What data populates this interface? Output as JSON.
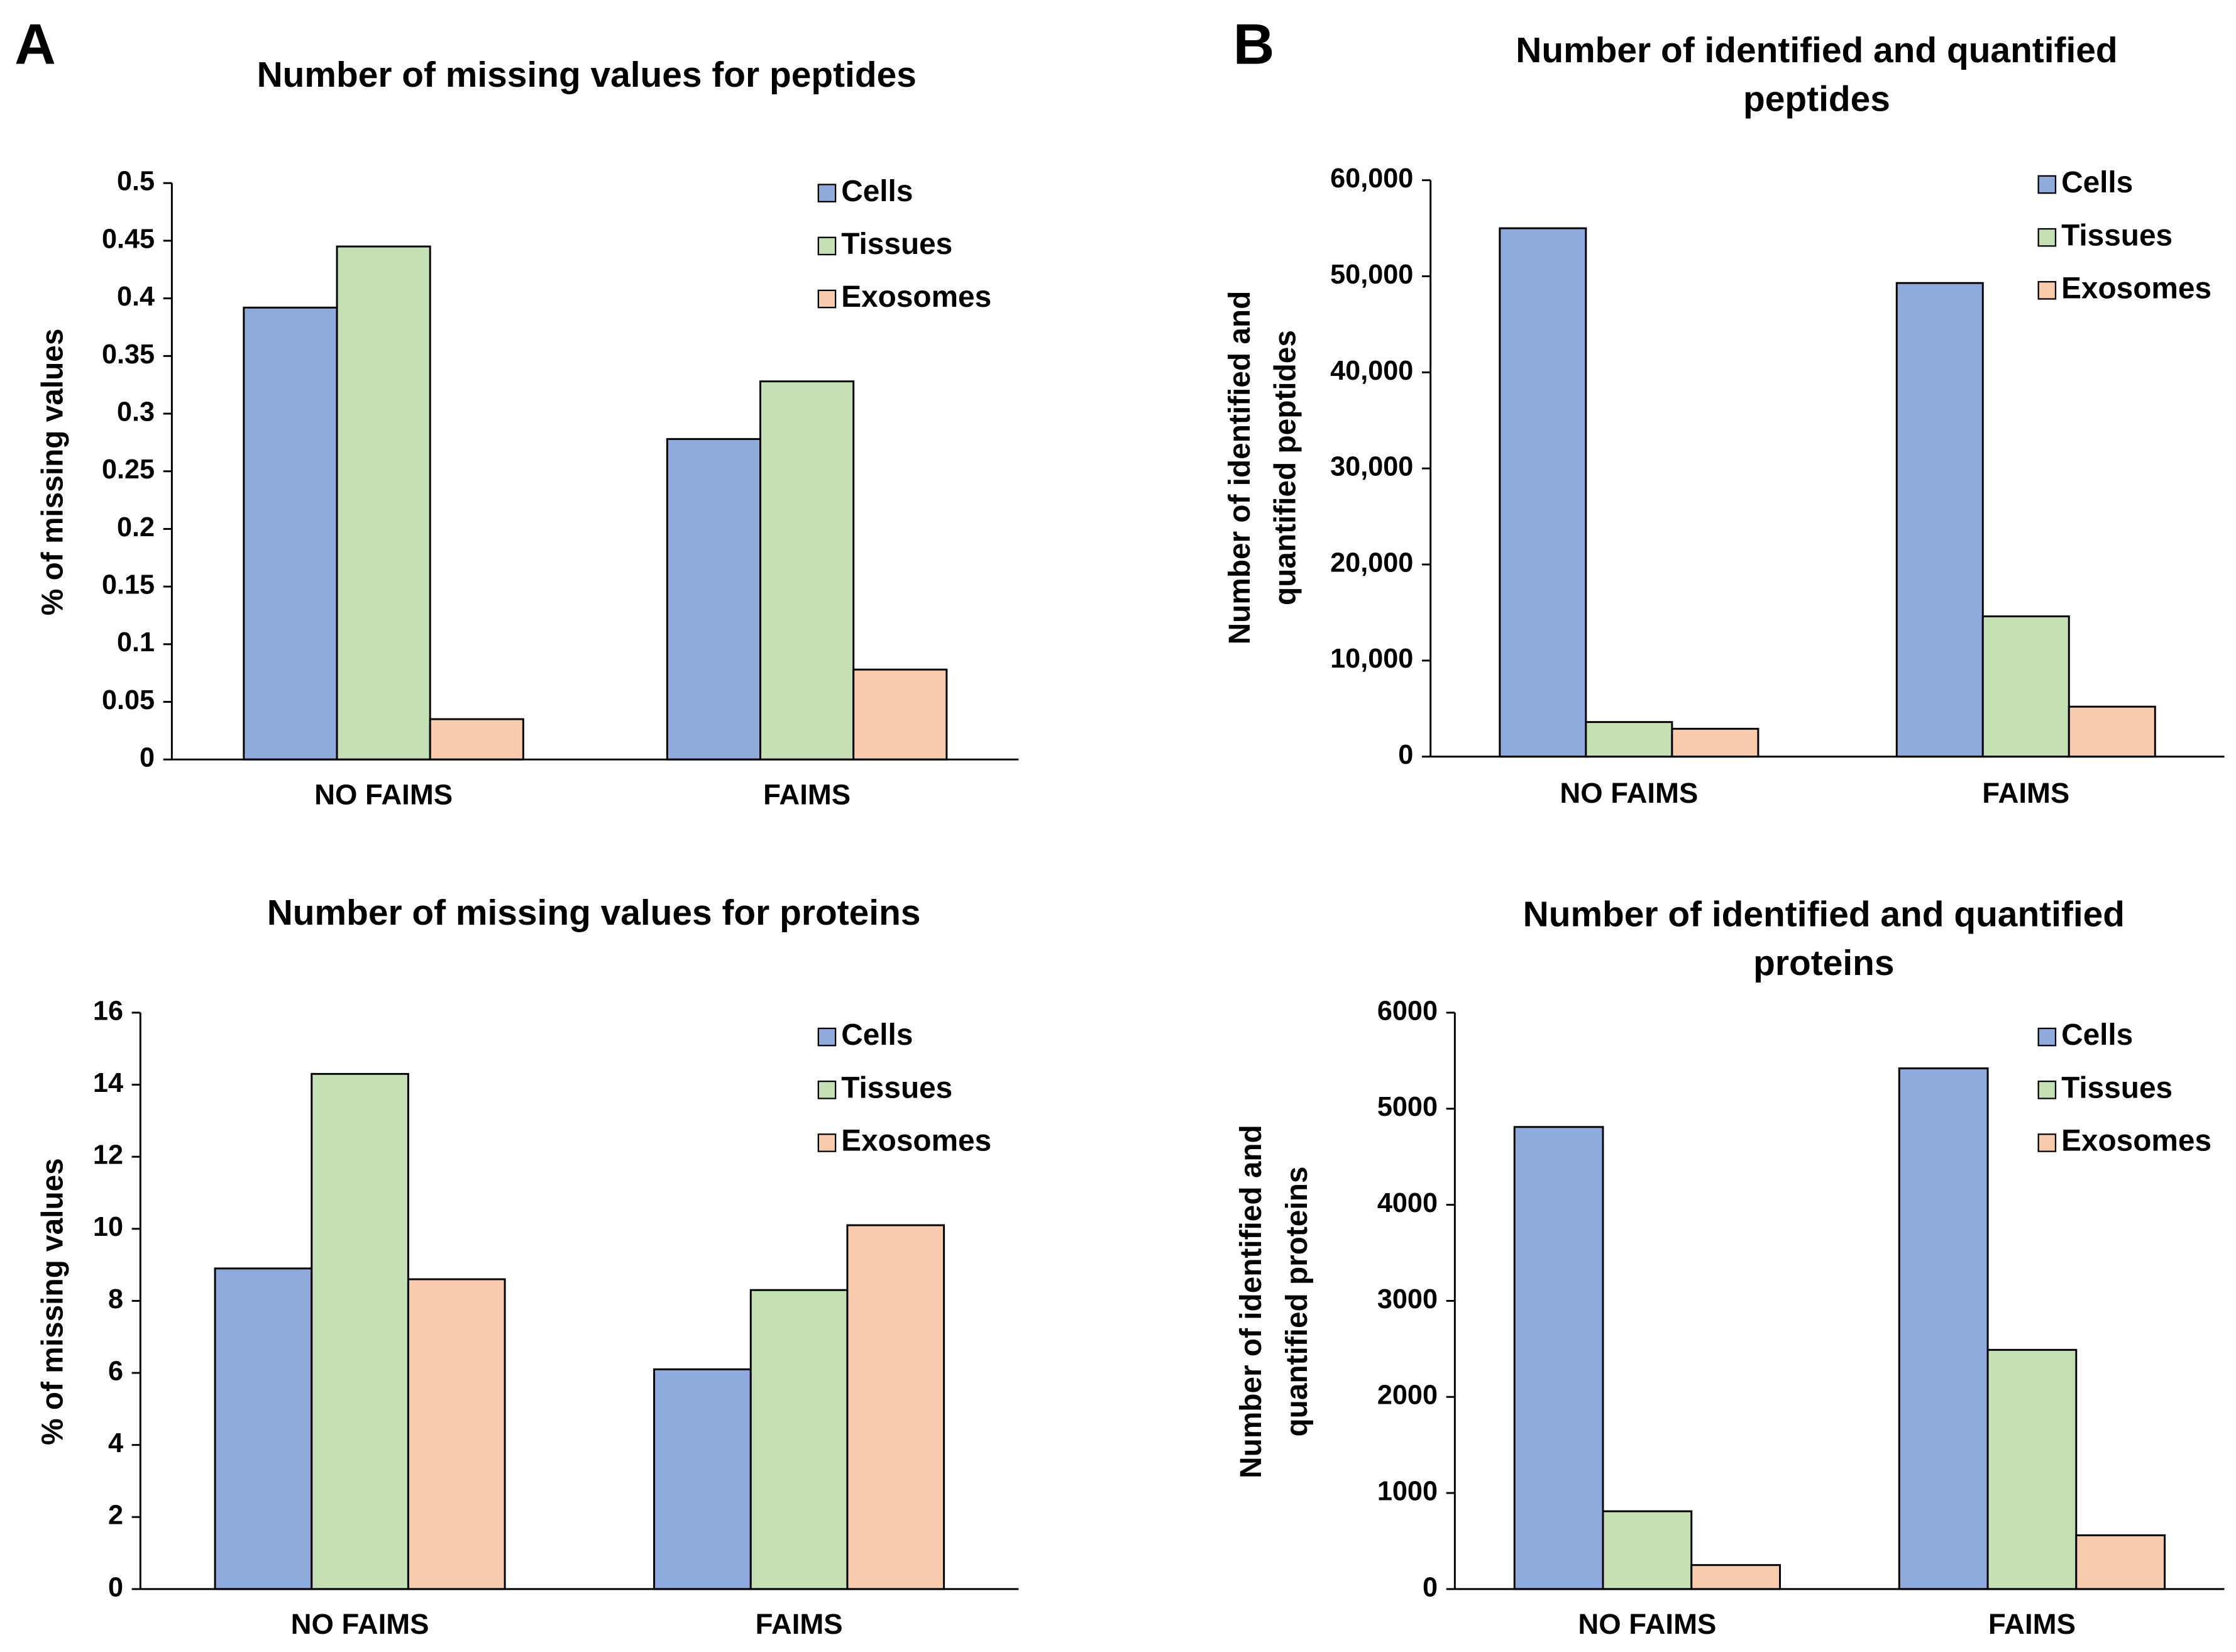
{
  "chart_data": [
    {
      "type": "bar",
      "panel": "A",
      "title": [
        "Number of missing values for peptides"
      ],
      "y_label": [
        "% of missing values"
      ],
      "categories": [
        "NO FAIMS",
        "FAIMS"
      ],
      "series": [
        {
          "name": "Cells",
          "color": "#8faadc",
          "values": [
            0.392,
            0.278
          ]
        },
        {
          "name": "Tissues",
          "color": "#c5e0b4",
          "values": [
            0.445,
            0.328
          ]
        },
        {
          "name": "Exosomes",
          "color": "#f8cbad",
          "values": [
            0.035,
            0.078
          ]
        }
      ],
      "ylim": [
        0,
        0.5
      ],
      "yticks": [
        0,
        0.05,
        0.1,
        0.15,
        0.2,
        0.25,
        0.3,
        0.35,
        0.4,
        0.45,
        0.5
      ],
      "grid": false,
      "legend": "upper right"
    },
    {
      "type": "bar",
      "panel": "B",
      "title": [
        "Number of identified and quantified",
        "peptides"
      ],
      "y_label": [
        "Number of identified and",
        "quantified peptides"
      ],
      "categories": [
        "NO FAIMS",
        "FAIMS"
      ],
      "series": [
        {
          "name": "Cells",
          "color": "#8faadc",
          "values": [
            55000,
            49300
          ]
        },
        {
          "name": "Tissues",
          "color": "#c5e0b4",
          "values": [
            3600,
            14600
          ]
        },
        {
          "name": "Exosomes",
          "color": "#f8cbad",
          "values": [
            2900,
            5200
          ]
        }
      ],
      "ylim": [
        0,
        60000
      ],
      "yticks": [
        0,
        {
          "value": 10000,
          "label": "10,000"
        },
        {
          "value": 20000,
          "label": "20,000"
        },
        {
          "value": 30000,
          "label": "30,000"
        },
        {
          "value": 40000,
          "label": "40,000"
        },
        {
          "value": 50000,
          "label": "50,000"
        },
        {
          "value": 60000,
          "label": "60,000"
        }
      ],
      "grid": false,
      "legend": "upper right"
    },
    {
      "type": "bar",
      "title": [
        "Number of missing values for proteins"
      ],
      "y_label": [
        "% of missing values"
      ],
      "categories": [
        "NO FAIMS",
        "FAIMS"
      ],
      "series": [
        {
          "name": "Cells",
          "color": "#8faadc",
          "values": [
            8.9,
            6.1
          ]
        },
        {
          "name": "Tissues",
          "color": "#c5e0b4",
          "values": [
            14.3,
            8.3
          ]
        },
        {
          "name": "Exosomes",
          "color": "#f8cbad",
          "values": [
            8.6,
            10.1
          ]
        }
      ],
      "ylim": [
        0,
        16
      ],
      "yticks": [
        0,
        2,
        4,
        6,
        8,
        10,
        12,
        14,
        16
      ],
      "grid": false,
      "legend": "upper right"
    },
    {
      "type": "bar",
      "title": [
        "Number of identified and quantified",
        "proteins"
      ],
      "y_label": [
        "Number of identified and",
        "quantified proteins"
      ],
      "categories": [
        "NO FAIMS",
        "FAIMS"
      ],
      "series": [
        {
          "name": "Cells",
          "color": "#8faadc",
          "values": [
            4810,
            5420
          ]
        },
        {
          "name": "Tissues",
          "color": "#c5e0b4",
          "values": [
            810,
            2490
          ]
        },
        {
          "name": "Exosomes",
          "color": "#f8cbad",
          "values": [
            250,
            560
          ]
        }
      ],
      "ylim": [
        0,
        6000
      ],
      "yticks": [
        0,
        1000,
        2000,
        3000,
        4000,
        5000,
        6000
      ],
      "grid": false,
      "legend": "upper right"
    }
  ]
}
